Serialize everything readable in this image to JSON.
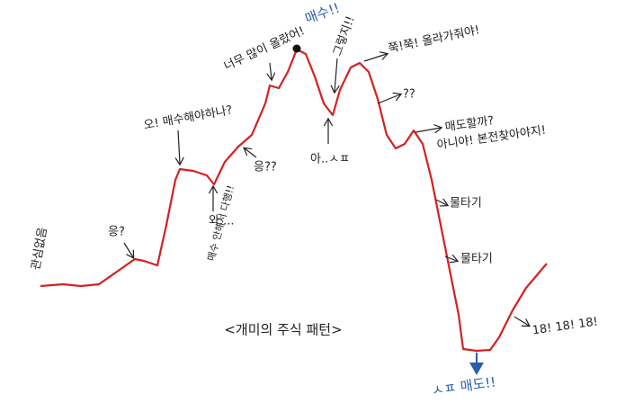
{
  "title": "<개미의 주식 패턴>",
  "annotations": [
    "관심없음",
    "응?",
    "오! 매수해야하나?",
    "와....",
    "매수 안해서 다행!!",
    "응??",
    "너무 많이 올랐어!",
    "매수!!",
    "그렇지!!",
    "쭉!쭉! 올라가줘야!",
    "아..ㅅㅍ",
    "??",
    "매도할까?",
    "아니야! 본전찾아야지!",
    "물타기",
    "물타기",
    "18! 18! 18!",
    "ㅅㅍ 매도!!"
  ]
}
